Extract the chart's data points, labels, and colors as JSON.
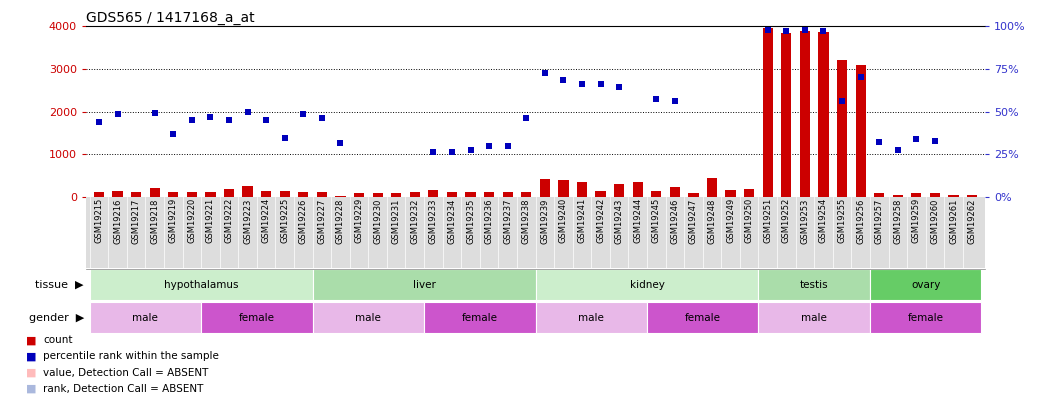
{
  "title": "GDS565 / 1417168_a_at",
  "samples": [
    "GSM19215",
    "GSM19216",
    "GSM19217",
    "GSM19218",
    "GSM19219",
    "GSM19220",
    "GSM19221",
    "GSM19222",
    "GSM19223",
    "GSM19224",
    "GSM19225",
    "GSM19226",
    "GSM19227",
    "GSM19228",
    "GSM19229",
    "GSM19230",
    "GSM19231",
    "GSM19232",
    "GSM19233",
    "GSM19234",
    "GSM19235",
    "GSM19236",
    "GSM19237",
    "GSM19238",
    "GSM19239",
    "GSM19240",
    "GSM19241",
    "GSM19242",
    "GSM19243",
    "GSM19244",
    "GSM19245",
    "GSM19246",
    "GSM19247",
    "GSM19248",
    "GSM19249",
    "GSM19250",
    "GSM19251",
    "GSM19252",
    "GSM19253",
    "GSM19254",
    "GSM19255",
    "GSM19256",
    "GSM19257",
    "GSM19258",
    "GSM19259",
    "GSM19260",
    "GSM19261",
    "GSM19262"
  ],
  "count": [
    120,
    130,
    115,
    200,
    105,
    110,
    125,
    180,
    250,
    130,
    130,
    120,
    110,
    20,
    90,
    100,
    85,
    115,
    155,
    120,
    105,
    115,
    110,
    120,
    430,
    390,
    350,
    130,
    305,
    340,
    140,
    230,
    100,
    450,
    150,
    180,
    3950,
    3850,
    3900,
    3870,
    3200,
    3100,
    90,
    50,
    90,
    80,
    50,
    40
  ],
  "count_absent": [
    false,
    false,
    false,
    false,
    false,
    false,
    false,
    false,
    false,
    false,
    false,
    false,
    false,
    false,
    false,
    false,
    false,
    false,
    false,
    false,
    false,
    false,
    false,
    false,
    false,
    false,
    false,
    false,
    false,
    false,
    false,
    false,
    false,
    false,
    false,
    false,
    false,
    false,
    false,
    false,
    false,
    false,
    false,
    false,
    false,
    false,
    false,
    false
  ],
  "percentile": [
    1750,
    1950,
    null,
    1960,
    1480,
    1800,
    1870,
    1800,
    1980,
    1800,
    1390,
    1950,
    1850,
    1260,
    null,
    null,
    null,
    null,
    1050,
    1050,
    1100,
    1200,
    1200,
    1850,
    2900,
    2750,
    2650,
    2650,
    2580,
    null,
    2300,
    2250,
    null,
    null,
    null,
    null,
    3920,
    3880,
    3910,
    3890,
    2250,
    2800,
    1280,
    1100,
    1350,
    1300,
    null,
    null
  ],
  "percentile_absent": [
    false,
    false,
    false,
    false,
    false,
    false,
    false,
    false,
    false,
    false,
    false,
    false,
    false,
    false,
    true,
    true,
    true,
    true,
    false,
    false,
    false,
    false,
    false,
    false,
    false,
    false,
    false,
    false,
    false,
    true,
    false,
    false,
    true,
    true,
    true,
    true,
    false,
    false,
    false,
    false,
    false,
    false,
    false,
    false,
    false,
    false,
    true,
    true
  ],
  "tissues": [
    {
      "label": "hypothalamus",
      "start": 0,
      "end": 11,
      "color": "#cceecc"
    },
    {
      "label": "liver",
      "start": 12,
      "end": 23,
      "color": "#aaddaa"
    },
    {
      "label": "kidney",
      "start": 24,
      "end": 35,
      "color": "#cceecc"
    },
    {
      "label": "testis",
      "start": 36,
      "end": 41,
      "color": "#aaddaa"
    },
    {
      "label": "ovary",
      "start": 42,
      "end": 47,
      "color": "#66cc66"
    }
  ],
  "genders": [
    {
      "label": "male",
      "start": 0,
      "end": 5,
      "color": "#e8b8e8"
    },
    {
      "label": "female",
      "start": 6,
      "end": 11,
      "color": "#cc55cc"
    },
    {
      "label": "male",
      "start": 12,
      "end": 17,
      "color": "#e8b8e8"
    },
    {
      "label": "female",
      "start": 18,
      "end": 23,
      "color": "#cc55cc"
    },
    {
      "label": "male",
      "start": 24,
      "end": 29,
      "color": "#e8b8e8"
    },
    {
      "label": "female",
      "start": 30,
      "end": 35,
      "color": "#cc55cc"
    },
    {
      "label": "male",
      "start": 36,
      "end": 41,
      "color": "#e8b8e8"
    },
    {
      "label": "female",
      "start": 42,
      "end": 47,
      "color": "#cc55cc"
    }
  ],
  "ylim_left": [
    0,
    4000
  ],
  "ylim_right": [
    0,
    100
  ],
  "yticks_left": [
    0,
    1000,
    2000,
    3000,
    4000
  ],
  "yticks_right": [
    0,
    25,
    50,
    75,
    100
  ],
  "bar_color": "#cc0000",
  "bar_absent_color": "#ffbbbb",
  "dot_color": "#0000bb",
  "dot_absent_color": "#aab8dd",
  "axis_left_color": "#cc0000",
  "axis_right_color": "#3333cc",
  "gridline_color": "black",
  "xtick_bg": "#dddddd",
  "title_fontsize": 10,
  "tick_fontsize": 6,
  "label_fontsize": 8,
  "legend_fontsize": 7.5
}
